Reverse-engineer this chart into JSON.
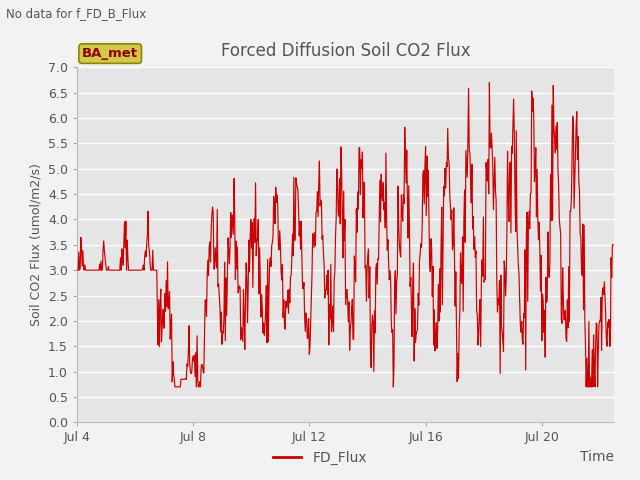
{
  "title": "Forced Diffusion Soil CO2 Flux",
  "xlabel": "Time",
  "ylabel": "Soil CO2 Flux (umol/m2/s)",
  "no_data_text": "No data for f_FD_B_Flux",
  "legend_label": "FD_Flux",
  "ba_met_label": "BA_met",
  "ylim": [
    0.0,
    7.0
  ],
  "yticks": [
    0.0,
    0.5,
    1.0,
    1.5,
    2.0,
    2.5,
    3.0,
    3.5,
    4.0,
    4.5,
    5.0,
    5.5,
    6.0,
    6.5,
    7.0
  ],
  "xtick_days": [
    4,
    8,
    12,
    16,
    20
  ],
  "line_color": "#cc0000",
  "bg_color": "#e5e5e5",
  "fig_bg_color": "#f2f2f2",
  "grid_color": "#ffffff",
  "title_color": "#555555",
  "axis_label_color": "#555555",
  "tick_label_color": "#555555",
  "ba_met_facecolor": "#d4c84a",
  "ba_met_edgecolor": "#888800",
  "ba_met_textcolor": "#8b0000"
}
